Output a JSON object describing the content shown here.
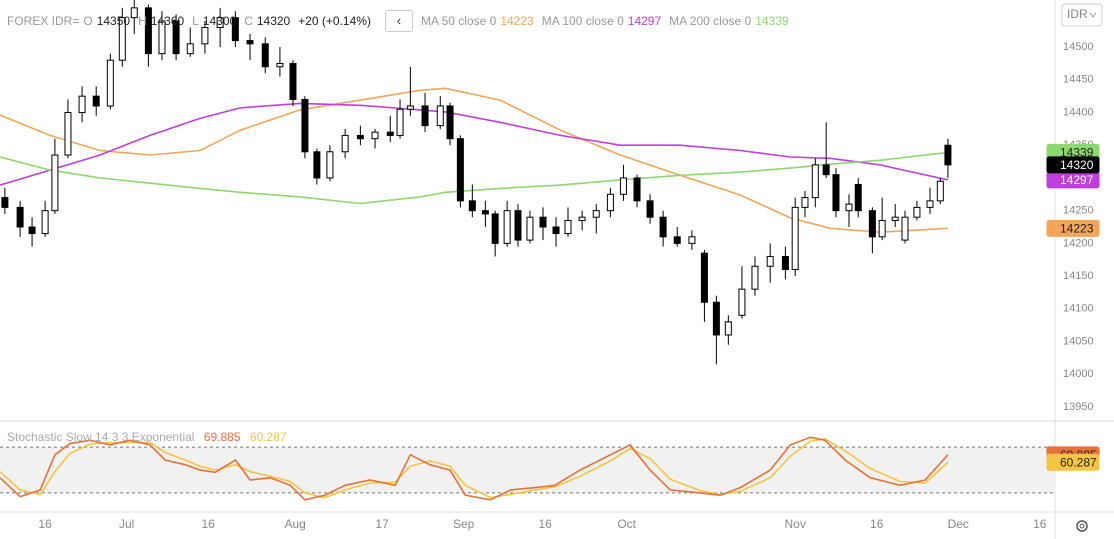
{
  "chart_data": [
    {
      "type": "candlestick",
      "title": "FOREX IDR=",
      "ohlc_labels": [
        "O",
        "H",
        "L",
        "C"
      ],
      "change_label": "+20 (+0.14%)",
      "currency": "IDR",
      "x": [
        7.6,
        10.4,
        12.6,
        15,
        16.8,
        19.2,
        21.8,
        24.4,
        27.0,
        29.2,
        31.4,
        34.0,
        36.5,
        39.1,
        41.7,
        44.4,
        47.2,
        50.0,
        52.7,
        55.5,
        58.2,
        60.6,
        62.8,
        65.0,
        67.4,
        70.2,
        73.0,
        75.7,
        78.5,
        80.3,
        82.2,
        84.9,
        87.7,
        89.5,
        91.4,
        93.6,
        96.0,
        97.8,
        100.0,
        102.0,
        104.2,
        106.6,
        109.0,
        111.2,
        113.8,
        116.4,
        119.0,
        121.4,
        123.9,
        126.3,
        128.7,
        131.3,
        134.0,
        136.3,
        138.5,
        140.7,
        143.2,
        145.6,
        148.4,
        151.2,
        153.0,
        154.8,
        156.7,
        158.7,
        160.5,
        162.9,
        164.6,
        167.2,
        169.0,
        171.4,
        173.2,
        175.4,
        177.8,
        179.7,
        181.1
      ],
      "open": [
        14270,
        14255,
        14225,
        14215,
        14250,
        14335,
        14400,
        14425,
        14410,
        14480,
        14545,
        14560,
        14490,
        14540,
        14490,
        14505,
        14530,
        14545,
        14510,
        14505,
        14470,
        14475,
        14420,
        14340,
        14300,
        14340,
        14365,
        14360,
        14370,
        14365,
        14405,
        14410,
        14380,
        14410,
        14360,
        14265,
        14250,
        14245,
        14200,
        14250,
        14205,
        14240,
        14225,
        14215,
        14235,
        14240,
        14250,
        14275,
        14300,
        14265,
        14240,
        14210,
        14200,
        14185,
        14110,
        14060,
        14090,
        14130,
        14165,
        14180,
        14160,
        14255,
        14270,
        14320,
        14305,
        14250,
        14290,
        14250,
        14210,
        14235,
        14205,
        14240,
        14255,
        14265,
        14350
      ],
      "high": [
        14285,
        14265,
        14240,
        14265,
        14360,
        14420,
        14440,
        14440,
        14490,
        14560,
        14575,
        14565,
        14555,
        14550,
        14530,
        14540,
        14560,
        14555,
        14520,
        14515,
        14500,
        14480,
        14425,
        14345,
        14350,
        14375,
        14380,
        14375,
        14395,
        14420,
        14470,
        14430,
        14425,
        14415,
        14365,
        14290,
        14265,
        14250,
        14265,
        14260,
        14250,
        14255,
        14240,
        14255,
        14250,
        14260,
        14285,
        14320,
        14305,
        14275,
        14250,
        14225,
        14220,
        14190,
        14120,
        14090,
        14165,
        14180,
        14200,
        14195,
        14270,
        14280,
        14330,
        14385,
        14315,
        14275,
        14300,
        14255,
        14270,
        14260,
        14250,
        14265,
        14285,
        14300,
        14360
      ],
      "low": [
        14245,
        14210,
        14195,
        14210,
        14245,
        14330,
        14385,
        14395,
        14405,
        14470,
        14520,
        14470,
        14480,
        14480,
        14485,
        14490,
        14500,
        14500,
        14480,
        14460,
        14455,
        14410,
        14330,
        14290,
        14295,
        14330,
        14350,
        14345,
        14355,
        14360,
        14395,
        14370,
        14375,
        14350,
        14255,
        14240,
        14225,
        14180,
        14195,
        14195,
        14200,
        14205,
        14195,
        14210,
        14220,
        14215,
        14240,
        14265,
        14255,
        14230,
        14195,
        14195,
        14190,
        14080,
        14015,
        14045,
        14085,
        14120,
        14140,
        14145,
        14150,
        14240,
        14255,
        14300,
        14240,
        14225,
        14240,
        14185,
        14205,
        14225,
        14200,
        14235,
        14245,
        14260,
        14300
      ],
      "close": [
        14255,
        14225,
        14215,
        14250,
        14335,
        14400,
        14425,
        14410,
        14480,
        14545,
        14560,
        14490,
        14540,
        14490,
        14505,
        14530,
        14545,
        14510,
        14505,
        14470,
        14475,
        14420,
        14340,
        14300,
        14340,
        14365,
        14360,
        14370,
        14365,
        14405,
        14410,
        14380,
        14410,
        14360,
        14265,
        14250,
        14245,
        14200,
        14250,
        14205,
        14240,
        14225,
        14215,
        14235,
        14240,
        14250,
        14275,
        14300,
        14265,
        14240,
        14210,
        14200,
        14210,
        14110,
        14060,
        14080,
        14130,
        14165,
        14180,
        14160,
        14255,
        14270,
        14320,
        14305,
        14250,
        14260,
        14250,
        14210,
        14235,
        14240,
        14240,
        14255,
        14265,
        14295,
        14320
      ],
      "up_color": "#ffffff",
      "down_color": "#000000",
      "overlay_x": [
        6.7,
        15.9,
        25.1,
        34.3,
        43.5,
        50.9,
        61.9,
        73.0,
        84.0,
        88.6,
        98.7,
        109.8,
        120.8,
        131.8,
        142.9,
        152.1,
        159.4,
        168.6,
        181.1
      ],
      "overlays": [
        {
          "name": "MA 50 close 0",
          "color": "#f5a55a",
          "last_value": 14223,
          "values": [
            14396,
            14365,
            14342,
            14335,
            14342,
            14373,
            14404,
            14419,
            14434,
            14437,
            14419,
            14373,
            14335,
            14304,
            14274,
            14239,
            14223,
            14217,
            14223
          ]
        },
        {
          "name": "MA 100 close 0",
          "color": "#c03ee0",
          "last_value": 14297,
          "values": [
            14289,
            14312,
            14335,
            14365,
            14391,
            14407,
            14414,
            14411,
            14404,
            14401,
            14385,
            14365,
            14350,
            14350,
            14342,
            14332,
            14330,
            14320,
            14297
          ]
        },
        {
          "name": "MA 200 close 0",
          "color": "#8fd870",
          "last_value": 14339,
          "values": [
            14332,
            14312,
            14300,
            14292,
            14284,
            14278,
            14271,
            14261,
            14271,
            14278,
            14284,
            14289,
            14297,
            14304,
            14309,
            14315,
            14321,
            14327,
            14339
          ]
        }
      ],
      "xlim": [
        6.7,
        200.8
      ],
      "ylim": [
        13930,
        14572
      ],
      "yticks": [
        13950,
        14000,
        14050,
        14100,
        14150,
        14200,
        14250,
        14300,
        14350,
        14400,
        14450,
        14500
      ],
      "xticks": [
        {
          "value": 15,
          "label": "16"
        },
        {
          "value": 30,
          "label": "Jul"
        },
        {
          "value": 45,
          "label": "16"
        },
        {
          "value": 61,
          "label": "Aug"
        },
        {
          "value": 77,
          "label": "17"
        },
        {
          "value": 92,
          "label": "Sep"
        },
        {
          "value": 107,
          "label": "16"
        },
        {
          "value": 122,
          "label": "Oct"
        },
        {
          "value": 153,
          "label": "Nov"
        },
        {
          "value": 168,
          "label": "16"
        },
        {
          "value": 183,
          "label": "Dec"
        },
        {
          "value": 198,
          "label": "16"
        }
      ]
    },
    {
      "type": "line",
      "title": "Stochastic Slow 14 3 3 Exponential",
      "x": [
        6.7,
        10.4,
        14.1,
        16.8,
        19.6,
        23.3,
        27.0,
        30.6,
        34.3,
        37.1,
        40.8,
        43.5,
        46.3,
        50.0,
        52.7,
        56.4,
        60.1,
        62.8,
        66.5,
        70.2,
        74.8,
        79.4,
        82.2,
        85.8,
        89.5,
        92.3,
        96.9,
        100.6,
        105.2,
        108.8,
        113.4,
        119.0,
        122.6,
        126.3,
        130.0,
        135.5,
        139.2,
        142.9,
        148.4,
        152.1,
        155.8,
        158.5,
        162.2,
        166.8,
        172.3,
        176.9,
        181.1
      ],
      "series": [
        {
          "color": "#e8703a",
          "last_value": 69.885,
          "values": [
            40,
            15,
            24,
            70,
            85,
            89,
            83,
            89,
            83,
            63,
            57,
            50,
            47,
            63,
            37,
            40,
            30,
            11,
            17,
            30,
            37,
            30,
            70,
            57,
            50,
            17,
            11,
            24,
            27,
            30,
            50,
            70,
            83,
            50,
            24,
            20,
            17,
            27,
            50,
            83,
            93,
            89,
            63,
            40,
            30,
            37,
            70
          ]
        },
        {
          "color": "#f4c542",
          "last_value": 60.287,
          "values": [
            48,
            24,
            18,
            48,
            72,
            84,
            86,
            86,
            86,
            73,
            63,
            55,
            50,
            57,
            48,
            42,
            35,
            20,
            14,
            24,
            33,
            34,
            55,
            62,
            55,
            30,
            14,
            18,
            24,
            28,
            42,
            62,
            78,
            65,
            38,
            23,
            18,
            22,
            40,
            68,
            88,
            91,
            75,
            52,
            35,
            33,
            60
          ]
        }
      ],
      "band": [
        20,
        80
      ],
      "xlim": [
        6.7,
        200.8
      ],
      "ylim": [
        -5,
        113
      ]
    }
  ]
}
